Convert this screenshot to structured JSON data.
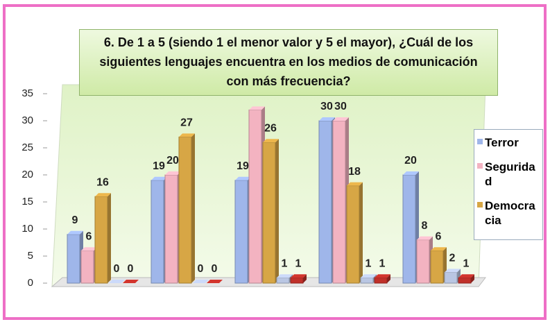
{
  "chart_data": {
    "type": "bar",
    "title": "6. De 1 a 5 (siendo 1 el menor valor y 5 el mayor), ¿Cuál de los siguientes lenguajes encuentra en los  medios de comunicación con más frecuencia?",
    "categories": [
      null,
      null,
      null,
      null,
      null
    ],
    "series": [
      {
        "name": "Terror",
        "color": "#9fb6ea",
        "values": [
          9,
          19,
          19,
          30,
          20
        ]
      },
      {
        "name": "Seguridad",
        "color": "#f3b3c1",
        "values": [
          6,
          20,
          32,
          30,
          8
        ],
        "value_labels": [
          "6",
          "20",
          null,
          "30",
          "8"
        ]
      },
      {
        "name": "Democracia",
        "color": "#d7a645",
        "values": [
          16,
          27,
          26,
          18,
          6
        ]
      },
      {
        "color": "#b9c6e3",
        "values": [
          0,
          0,
          1,
          1,
          2
        ]
      },
      {
        "color": "#c0302a",
        "values": [
          0,
          0,
          1,
          1,
          1
        ]
      }
    ],
    "ylim": [
      0,
      35
    ],
    "yticks": [
      0,
      5,
      10,
      15,
      20,
      25,
      30,
      35
    ],
    "legend": "right"
  }
}
